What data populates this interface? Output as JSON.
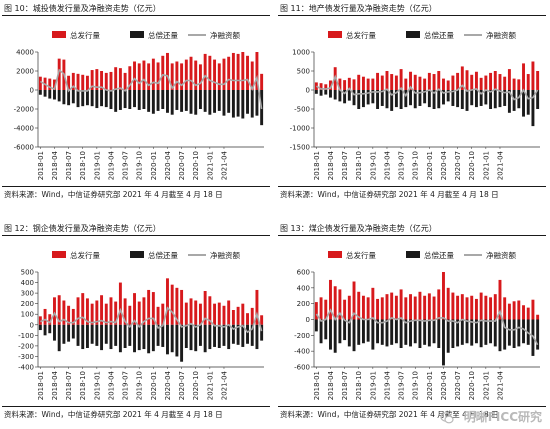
{
  "colors": {
    "issue": "#d7191c",
    "repay": "#1a1a1a",
    "net": "#a8a8a8",
    "axis": "#333333"
  },
  "watermark": {
    "text": "明晰FICC研究"
  },
  "x_tick_labels": [
    "2018-01",
    "2018-04",
    "2018-07",
    "2018-10",
    "2019-01",
    "2019-04",
    "2019-07",
    "2019-10",
    "2020-01",
    "2020-04",
    "2020-07",
    "2020-10",
    "2021-01",
    "2021-04"
  ],
  "chart_data": [
    {
      "type": "bar",
      "title": "图 10：城投债发行量及净融资走势（亿元）",
      "source": "资料来源：Wind，中信证券研究部  2021 年 4 月截至 4 月 18 日",
      "legend": [
        "总发行量",
        "总偿还量",
        "净融资额"
      ],
      "ylim": [
        -6000,
        4000
      ],
      "yticks": [
        "4000",
        "2000",
        "0",
        "-2000",
        "-4000",
        "-6000"
      ],
      "ytick_values": [
        4000,
        2000,
        0,
        -2000,
        -4000,
        -6000
      ],
      "xtick_labels": [
        "2018-01",
        "2018-04",
        "2018-07",
        "2018-10",
        "2019-01",
        "2019-04",
        "2019-07",
        "2019-10",
        "2020-01",
        "2020-04",
        "2020-07",
        "2020-10",
        "2021-01",
        "2021-04"
      ],
      "series": [
        {
          "name": "总发行量",
          "kind": "bar",
          "values": [
            1400,
            1300,
            1200,
            1100,
            3300,
            3200,
            1500,
            1800,
            1700,
            1600,
            1500,
            2100,
            2200,
            2000,
            1800,
            1900,
            2400,
            2300,
            1800,
            2500,
            3000,
            2800,
            3100,
            2800,
            3300,
            2900,
            3600,
            3900,
            2800,
            3000,
            2800,
            3200,
            3500,
            3100,
            2700,
            3800,
            3600,
            3200,
            2800,
            3300,
            3500,
            3900,
            3800,
            4000,
            3600,
            3000,
            4000,
            1700
          ]
        },
        {
          "name": "总偿还量",
          "kind": "bar",
          "values": [
            -500,
            -700,
            -900,
            -1000,
            -1200,
            -1500,
            -1600,
            -1400,
            -1800,
            -1700,
            -1600,
            -1700,
            -1900,
            -1700,
            -1800,
            -2000,
            -2300,
            -2100,
            -1900,
            -2000,
            -1800,
            -2100,
            -2000,
            -2300,
            -2500,
            -2200,
            -2000,
            -2400,
            -2600,
            -2100,
            -2300,
            -2200,
            -2500,
            -2600,
            -2000,
            -2300,
            -2600,
            -2400,
            -2200,
            -2700,
            -2400,
            -2900,
            -2800,
            -3000,
            -2500,
            -2900,
            -2700,
            -3700
          ]
        },
        {
          "name": "净融资额",
          "kind": "line",
          "values": [
            900,
            600,
            300,
            100,
            2100,
            1700,
            -100,
            400,
            -100,
            -100,
            -100,
            400,
            300,
            300,
            0,
            -100,
            100,
            200,
            -100,
            500,
            1200,
            700,
            1100,
            500,
            800,
            700,
            1600,
            1500,
            200,
            900,
            500,
            1000,
            1000,
            500,
            700,
            1500,
            1000,
            800,
            600,
            600,
            1100,
            1000,
            1000,
            1000,
            1100,
            100,
            1300,
            -2000
          ]
        }
      ]
    },
    {
      "type": "bar",
      "title": "图 11：地产债发行量及净融资走势（亿元）",
      "source": "资料来源：Wind，中信证券研究部  2021 年 4 月截至 4 月 18 日",
      "legend": [
        "总发行量",
        "总偿还量",
        "净融资额"
      ],
      "ylim": [
        -1500,
        1000
      ],
      "yticks": [
        "1000",
        "500",
        "0",
        "-500",
        "-1000",
        "-1500"
      ],
      "ytick_values": [
        1000,
        500,
        0,
        -500,
        -1000,
        -1500
      ],
      "xtick_labels": [
        "2018-01",
        "2018-04",
        "2018-07",
        "2018-10",
        "2019-01",
        "2019-04",
        "2019-07",
        "2019-10",
        "2020-01",
        "2020-04",
        "2020-07",
        "2020-10",
        "2021-01",
        "2021-04"
      ],
      "series": [
        {
          "name": "总发行量",
          "kind": "bar",
          "values": [
            200,
            180,
            150,
            250,
            600,
            300,
            260,
            320,
            280,
            400,
            350,
            300,
            300,
            450,
            380,
            500,
            420,
            380,
            550,
            300,
            480,
            400,
            350,
            300,
            450,
            420,
            500,
            300,
            250,
            380,
            450,
            620,
            520,
            400,
            480,
            320,
            380,
            450,
            500,
            420,
            350,
            550,
            300,
            280,
            700,
            420,
            750,
            500
          ]
        },
        {
          "name": "总偿还量",
          "kind": "bar",
          "values": [
            -100,
            -150,
            -120,
            -200,
            -250,
            -300,
            -350,
            -280,
            -400,
            -500,
            -450,
            -380,
            -350,
            -500,
            -420,
            -480,
            -550,
            -450,
            -500,
            -450,
            -400,
            -480,
            -420,
            -350,
            -450,
            -500,
            -480,
            -380,
            -300,
            -420,
            -450,
            -500,
            -550,
            -400,
            -450,
            -420,
            -380,
            -500,
            -480,
            -450,
            -420,
            -600,
            -550,
            -480,
            -700,
            -650,
            -950,
            -500
          ]
        },
        {
          "name": "净融资额",
          "kind": "line",
          "values": [
            100,
            30,
            30,
            50,
            350,
            0,
            -90,
            40,
            -120,
            -100,
            -100,
            -80,
            -50,
            -50,
            -40,
            20,
            -130,
            -70,
            50,
            -150,
            80,
            -80,
            -70,
            -50,
            0,
            -80,
            20,
            -80,
            -50,
            -40,
            0,
            120,
            -30,
            0,
            30,
            -100,
            0,
            -50,
            20,
            -30,
            -70,
            -50,
            -250,
            -200,
            0,
            -230,
            -200,
            0
          ]
        }
      ]
    },
    {
      "type": "bar",
      "title": "图 12：钢企债发行量及净融资走势（亿元）",
      "source": "资料来源：Wind，中信证券研究部  2021 年 4 月截至 4 月 18 日",
      "legend": [
        "总发行量",
        "总偿还量",
        "净融资额"
      ],
      "ylim": [
        -400,
        500
      ],
      "yticks": [
        "500",
        "400",
        "300",
        "200",
        "100",
        "0",
        "-100",
        "-200",
        "-300",
        "-400"
      ],
      "ytick_values": [
        500,
        400,
        300,
        200,
        100,
        0,
        -100,
        -200,
        -300,
        -400
      ],
      "xtick_labels": [
        "2018-01",
        "2018-04",
        "2018-07",
        "2018-10",
        "2019-01",
        "2019-04",
        "2019-07",
        "2019-10",
        "2020-01",
        "2020-04",
        "2020-07",
        "2020-10",
        "2021-01",
        "2021-04"
      ],
      "series": [
        {
          "name": "总发行量",
          "kind": "bar",
          "values": [
            80,
            150,
            100,
            260,
            280,
            230,
            180,
            150,
            260,
            300,
            250,
            200,
            230,
            280,
            200,
            260,
            220,
            400,
            250,
            180,
            300,
            220,
            260,
            330,
            310,
            170,
            200,
            440,
            380,
            350,
            330,
            210,
            250,
            230,
            200,
            320,
            270,
            200,
            210,
            180,
            230,
            140,
            170,
            200,
            110,
            160,
            330,
            90
          ]
        },
        {
          "name": "总偿还量",
          "kind": "bar",
          "values": [
            -50,
            -100,
            -80,
            -150,
            -250,
            -180,
            -160,
            -130,
            -200,
            -230,
            -220,
            -180,
            -200,
            -240,
            -180,
            -230,
            -200,
            -260,
            -220,
            -200,
            -260,
            -240,
            -230,
            -270,
            -250,
            -200,
            -210,
            -280,
            -260,
            -300,
            -350,
            -220,
            -240,
            -250,
            -200,
            -260,
            -230,
            -210,
            -220,
            -200,
            -230,
            -180,
            -190,
            -210,
            -180,
            -200,
            -230,
            -150
          ]
        },
        {
          "name": "净融资额",
          "kind": "line",
          "values": [
            30,
            50,
            20,
            110,
            30,
            50,
            20,
            20,
            60,
            70,
            30,
            20,
            30,
            40,
            20,
            30,
            20,
            140,
            30,
            -20,
            40,
            -20,
            30,
            60,
            60,
            -30,
            -10,
            160,
            120,
            50,
            -20,
            -10,
            10,
            -20,
            0,
            60,
            40,
            -10,
            -10,
            -20,
            0,
            -40,
            -20,
            -10,
            -70,
            -40,
            100,
            -60
          ]
        }
      ]
    },
    {
      "type": "bar",
      "title": "图 13：煤企债发行量及净融资走势（亿元）",
      "source": "资料来源：Wind，中信证券研究部  2021 年 4 月截至 4 月 18 日",
      "legend": [
        "总发行量",
        "总偿还量",
        "净融资额"
      ],
      "ylim": [
        -600,
        600
      ],
      "yticks": [
        "600",
        "400",
        "200",
        "0",
        "-200",
        "-400",
        "-600"
      ],
      "ytick_values": [
        600,
        400,
        200,
        0,
        -200,
        -400,
        -600
      ],
      "xtick_labels": [
        "2018-01",
        "2018-04",
        "2018-07",
        "2018-10",
        "2019-01",
        "2019-04",
        "2019-07",
        "2019-10",
        "2020-01",
        "2020-04",
        "2020-07",
        "2020-10",
        "2021-01",
        "2021-04"
      ],
      "series": [
        {
          "name": "总发行量",
          "kind": "bar",
          "values": [
            220,
            280,
            250,
            500,
            420,
            380,
            250,
            300,
            480,
            350,
            300,
            280,
            400,
            260,
            280,
            320,
            340,
            300,
            380,
            280,
            320,
            290,
            350,
            300,
            330,
            290,
            380,
            600,
            400,
            340,
            300,
            320,
            280,
            300,
            260,
            340,
            300,
            280,
            320,
            500,
            280,
            200,
            230,
            240,
            180,
            150,
            250,
            60
          ]
        },
        {
          "name": "总偿还量",
          "kind": "bar",
          "values": [
            -150,
            -300,
            -250,
            -380,
            -420,
            -300,
            -260,
            -340,
            -400,
            -320,
            -300,
            -280,
            -380,
            -300,
            -320,
            -340,
            -320,
            -300,
            -360,
            -320,
            -340,
            -300,
            -360,
            -320,
            -340,
            -300,
            -360,
            -580,
            -420,
            -360,
            -340,
            -320,
            -300,
            -330,
            -300,
            -350,
            -320,
            -300,
            -340,
            -400,
            -380,
            -330,
            -360,
            -340,
            -300,
            -320,
            -460,
            -380
          ]
        },
        {
          "name": "净融资额",
          "kind": "line",
          "values": [
            70,
            -20,
            0,
            120,
            0,
            80,
            -10,
            -40,
            80,
            30,
            0,
            0,
            20,
            -40,
            -40,
            -20,
            20,
            0,
            20,
            -40,
            -20,
            -10,
            -10,
            -20,
            -10,
            -10,
            20,
            20,
            -20,
            -20,
            -40,
            0,
            -20,
            -30,
            -40,
            -10,
            -20,
            -20,
            -20,
            100,
            -100,
            -130,
            -130,
            -100,
            -120,
            -170,
            -210,
            -320
          ]
        }
      ]
    }
  ]
}
